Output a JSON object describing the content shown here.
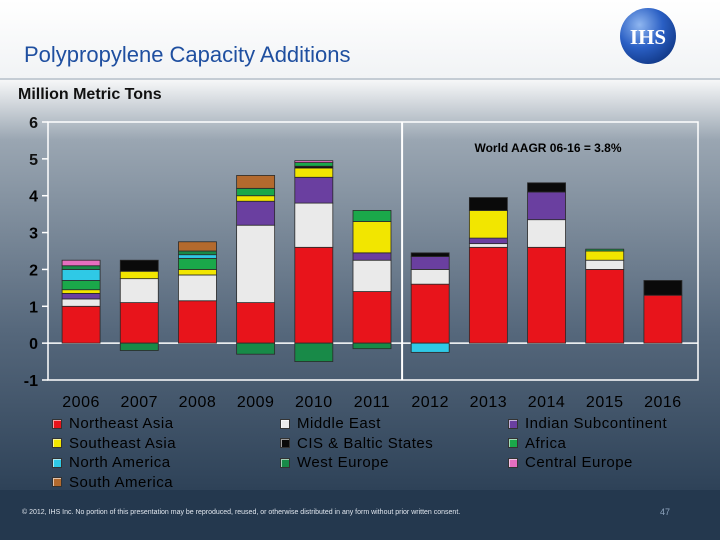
{
  "slide": {
    "title": "Polypropylene Capacity Additions",
    "copyright": "© 2012, IHS Inc. No portion of this presentation may be reproduced, reused, or otherwise distributed in any form without prior written consent.",
    "page_number": "47",
    "logo_text": "IHS"
  },
  "chart_data": {
    "type": "bar",
    "stacked": true,
    "title": "Polypropylene Capacity Additions",
    "ylabel": "Million Metric Tons",
    "xlabel": "",
    "ylim": [
      -1,
      6
    ],
    "yticks": [
      6,
      5,
      4,
      3,
      2,
      1,
      0,
      -1
    ],
    "annotation": "World AAGR 06-16 = 3.8%",
    "divider_after": "2011",
    "categories": [
      "2006",
      "2007",
      "2008",
      "2009",
      "2010",
      "2011",
      "2012",
      "2013",
      "2014",
      "2015",
      "2016"
    ],
    "series": [
      {
        "name": "Northeast Asia",
        "color": "#e8141b",
        "values": [
          1.0,
          1.1,
          1.15,
          1.1,
          2.6,
          1.4,
          1.6,
          2.6,
          2.6,
          2.0,
          1.3
        ]
      },
      {
        "name": "Middle East",
        "color": "#eaeaea",
        "values": [
          0.2,
          0.65,
          0.7,
          2.1,
          1.2,
          0.85,
          0.4,
          0.1,
          0.75,
          0.25,
          0
        ]
      },
      {
        "name": "Indian Subcontinent",
        "color": "#6a3fa0",
        "values": [
          0.15,
          0,
          0,
          0.65,
          0.7,
          0.2,
          0.35,
          0.15,
          0.75,
          0,
          0
        ]
      },
      {
        "name": "Southeast Asia",
        "color": "#f2e600",
        "values": [
          0.1,
          0.2,
          0.15,
          0.15,
          0.25,
          0.85,
          0,
          0.75,
          0,
          0.25,
          0
        ]
      },
      {
        "name": "CIS & Baltic States",
        "color": "#0a0a0a",
        "values": [
          0,
          0.3,
          0,
          0,
          0.05,
          0,
          0.1,
          0.35,
          0.25,
          0,
          0.4
        ]
      },
      {
        "name": "Africa",
        "color": "#1aa84a",
        "values": [
          0.25,
          0,
          0.3,
          0.2,
          0.1,
          0.3,
          0,
          0,
          0,
          0.05,
          0
        ]
      },
      {
        "name": "North America",
        "color": "#2fc9e6",
        "values": [
          0.3,
          0,
          0.1,
          0,
          0,
          0,
          -0.25,
          0,
          0,
          0,
          0
        ]
      },
      {
        "name": "West Europe",
        "color": "#188a48",
        "values": [
          0.1,
          -0.2,
          0.1,
          -0.3,
          -0.5,
          -0.15,
          0,
          0,
          0,
          0,
          0
        ]
      },
      {
        "name": "Central Europe",
        "color": "#e66ec0",
        "values": [
          0.15,
          0,
          0,
          0,
          0.05,
          0,
          0,
          0,
          0,
          0,
          0
        ]
      },
      {
        "name": "South America",
        "color": "#b36a2e",
        "values": [
          0,
          0,
          0.25,
          0.35,
          0,
          0,
          0,
          0,
          0,
          0,
          0
        ]
      }
    ],
    "legend": {
      "placement": "bottom",
      "columns": [
        [
          "Northeast Asia",
          "Southeast Asia",
          "North America",
          "South America"
        ],
        [
          "Middle East",
          "CIS & Baltic States",
          "West Europe"
        ],
        [
          "Indian Subcontinent",
          "Africa",
          "Central Europe"
        ]
      ]
    }
  }
}
